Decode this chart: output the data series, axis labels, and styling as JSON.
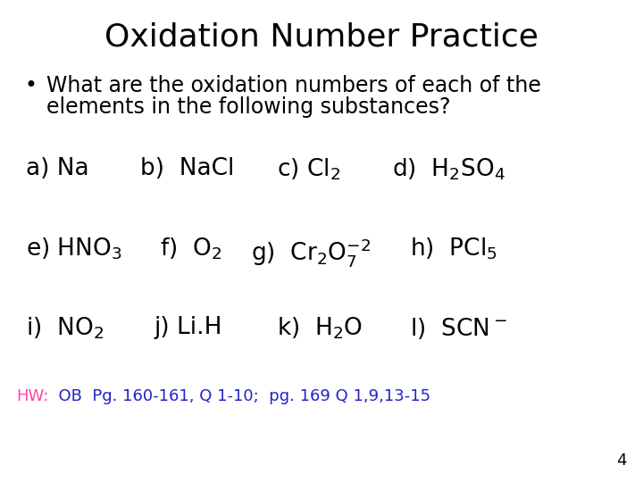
{
  "title": "Oxidation Number Practice",
  "title_fontsize": 26,
  "background_color": "#ffffff",
  "text_color": "#000000",
  "hw_label": "HW:",
  "hw_label_color": "#ff44aa",
  "hw_rest": "  OB  Pg. 160-161, Q 1-10;  pg. 169 Q 1,9,13-15",
  "hw_rest_color": "#2222cc",
  "page_num": "4",
  "bullet_fontsize": 17,
  "item_fontsize": 19,
  "hw_fontsize": 13,
  "page_fontsize": 13
}
